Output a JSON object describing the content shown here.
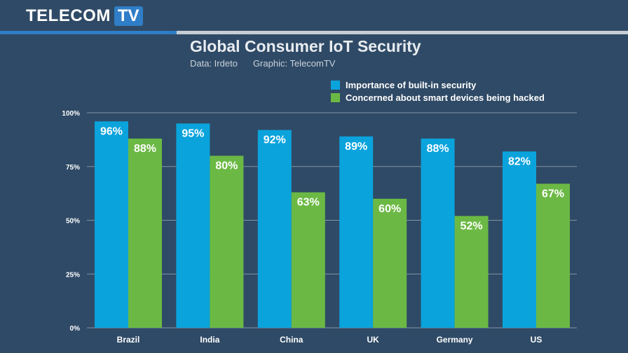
{
  "brand": {
    "name": "TELECOM",
    "badge": "TV"
  },
  "colors": {
    "background": "#2f4a66",
    "accent": "#2f7ec7",
    "series1": "#0aa3dc",
    "series2": "#6bb944",
    "grid": "#8193a5"
  },
  "chart_data": {
    "type": "bar",
    "title": "Global Consumer IoT Security",
    "subtitle_data": "Data: Irdeto",
    "subtitle_graphic": "Graphic: TelecomTV",
    "categories": [
      "Brazil",
      "India",
      "China",
      "UK",
      "Germany",
      "US"
    ],
    "series": [
      {
        "name": "Importance of built-in security",
        "values": [
          96,
          95,
          92,
          89,
          88,
          82
        ],
        "labels": [
          "96%",
          "95%",
          "92%",
          "89%",
          "88%",
          "82%"
        ]
      },
      {
        "name": "Concerned about smart devices being hacked",
        "values": [
          88,
          80,
          63,
          60,
          52,
          67
        ],
        "labels": [
          "88%",
          "80%",
          "63%",
          "60%",
          "52%",
          "67%"
        ]
      }
    ],
    "yticks": [
      0,
      25,
      50,
      75,
      100
    ],
    "ytick_labels": [
      "0%",
      "25%",
      "50%",
      "75%",
      "100%"
    ],
    "ylim": [
      0,
      100
    ],
    "legend": "top-right",
    "grid": true
  }
}
